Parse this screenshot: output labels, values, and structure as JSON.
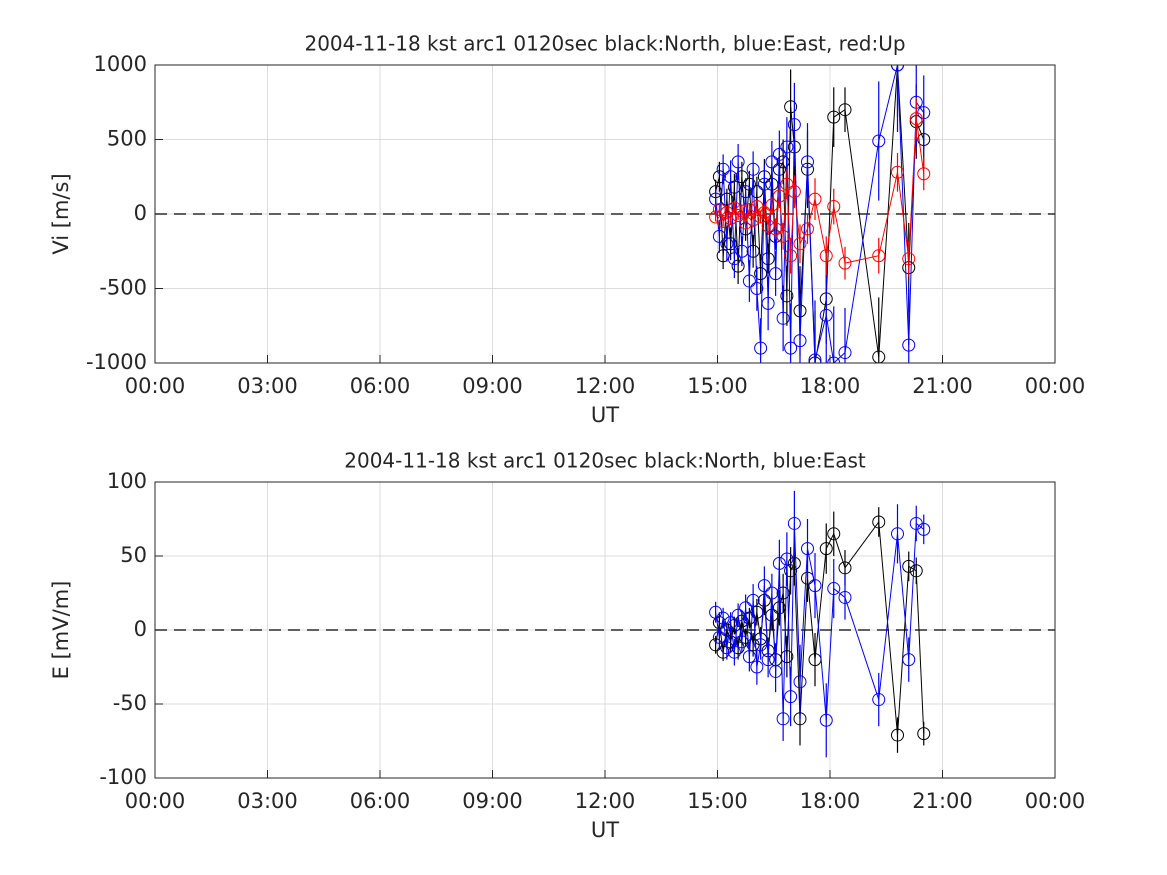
{
  "chart_data": [
    {
      "type": "line",
      "title": "2004-11-18 kst arc1 0120sec black:North, blue:East, red:Up",
      "x_label": "UT",
      "y_label": "Vi [m/s]",
      "xlim": [
        0,
        24
      ],
      "xticks": [
        {
          "value": 0,
          "label": "00:00"
        },
        {
          "value": 3,
          "label": "03:00"
        },
        {
          "value": 6,
          "label": "06:00"
        },
        {
          "value": 9,
          "label": "09:00"
        },
        {
          "value": 12,
          "label": "12:00"
        },
        {
          "value": 15,
          "label": "15:00"
        },
        {
          "value": 18,
          "label": "18:00"
        },
        {
          "value": 21,
          "label": "21:00"
        },
        {
          "value": 24,
          "label": "00:00"
        }
      ],
      "ylim": [
        -1000,
        1000
      ],
      "yticks": [
        -1000,
        -500,
        0,
        500,
        1000
      ],
      "grid": true,
      "x": [
        14.95,
        15.05,
        15.15,
        15.25,
        15.35,
        15.45,
        15.55,
        15.65,
        15.75,
        15.85,
        15.95,
        16.05,
        16.15,
        16.25,
        16.35,
        16.45,
        16.55,
        16.65,
        16.75,
        16.85,
        16.95,
        17.05,
        17.2,
        17.4,
        17.6,
        17.9,
        18.1,
        18.4,
        19.3,
        19.8,
        20.1,
        20.3,
        20.5
      ],
      "series": [
        {
          "name": "North",
          "color": "#000000",
          "values": [
            150,
            250,
            -280,
            100,
            -200,
            180,
            -350,
            250,
            -100,
            200,
            -250,
            150,
            -400,
            250,
            -300,
            200,
            -150,
            300,
            350,
            -550,
            720,
            450,
            -650,
            300,
            -1000,
            -570,
            650,
            700,
            -960,
            1000,
            -360,
            620,
            500
          ],
          "errors": [
            80,
            100,
            90,
            70,
            110,
            90,
            120,
            100,
            80,
            90,
            110,
            100,
            130,
            120,
            100,
            110,
            90,
            140,
            150,
            200,
            250,
            220,
            300,
            260,
            350,
            300,
            200,
            150,
            400,
            350,
            300,
            250,
            200
          ]
        },
        {
          "name": "East",
          "color": "#0000ff",
          "values": [
            100,
            -150,
            300,
            -200,
            250,
            -300,
            350,
            -250,
            150,
            -450,
            300,
            -500,
            -900,
            200,
            -600,
            350,
            -400,
            400,
            -700,
            450,
            -900,
            600,
            -850,
            350,
            -980,
            -680,
            -1000,
            -930,
            490,
            1000,
            -880,
            750,
            680
          ],
          "errors": [
            90,
            110,
            100,
            120,
            110,
            130,
            120,
            100,
            90,
            140,
            120,
            150,
            200,
            130,
            180,
            140,
            150,
            160,
            220,
            200,
            300,
            280,
            320,
            260,
            400,
            350,
            380,
            300,
            400,
            450,
            380,
            300,
            250
          ]
        },
        {
          "name": "Up",
          "color": "#ff0000",
          "values": [
            -20,
            30,
            -50,
            10,
            -30,
            40,
            -10,
            20,
            -60,
            30,
            -40,
            50,
            -20,
            10,
            -80,
            60,
            -100,
            120,
            -150,
            200,
            -280,
            150,
            -200,
            -100,
            100,
            -280,
            50,
            -330,
            -280,
            280,
            -300,
            640,
            270
          ],
          "errors": [
            30,
            40,
            35,
            30,
            40,
            35,
            30,
            40,
            45,
            40,
            50,
            45,
            40,
            40,
            60,
            55,
            70,
            80,
            90,
            100,
            120,
            110,
            130,
            100,
            140,
            130,
            120,
            110,
            120,
            130,
            120,
            140,
            110
          ]
        }
      ]
    },
    {
      "type": "line",
      "title": "2004-11-18 kst arc1 0120sec black:North, blue:East",
      "x_label": "UT",
      "y_label": "E [mV/m]",
      "xlim": [
        0,
        24
      ],
      "xticks": [
        {
          "value": 0,
          "label": "00:00"
        },
        {
          "value": 3,
          "label": "03:00"
        },
        {
          "value": 6,
          "label": "06:00"
        },
        {
          "value": 9,
          "label": "09:00"
        },
        {
          "value": 12,
          "label": "12:00"
        },
        {
          "value": 15,
          "label": "15:00"
        },
        {
          "value": 18,
          "label": "18:00"
        },
        {
          "value": 21,
          "label": "21:00"
        },
        {
          "value": 24,
          "label": "00:00"
        }
      ],
      "ylim": [
        -100,
        100
      ],
      "yticks": [
        -100,
        -50,
        0,
        50,
        100
      ],
      "grid": true,
      "x": [
        14.95,
        15.05,
        15.15,
        15.25,
        15.35,
        15.45,
        15.55,
        15.65,
        15.75,
        15.85,
        15.95,
        16.05,
        16.15,
        16.25,
        16.35,
        16.45,
        16.55,
        16.65,
        16.75,
        16.85,
        16.95,
        17.05,
        17.2,
        17.4,
        17.6,
        17.9,
        18.1,
        18.4,
        19.3,
        19.8,
        20.1,
        20.3,
        20.5
      ],
      "series": [
        {
          "name": "North",
          "color": "#000000",
          "values": [
            -10,
            5,
            -15,
            0,
            -8,
            3,
            -12,
            6,
            -5,
            8,
            -10,
            12,
            -6,
            20,
            -14,
            10,
            -20,
            15,
            25,
            -18,
            40,
            45,
            -60,
            35,
            -20,
            55,
            65,
            42,
            73,
            -71,
            43,
            40,
            -70
          ],
          "errors": [
            6,
            7,
            6,
            5,
            7,
            6,
            8,
            7,
            6,
            7,
            8,
            9,
            8,
            10,
            9,
            10,
            11,
            12,
            13,
            14,
            16,
            15,
            18,
            16,
            18,
            17,
            15,
            12,
            10,
            12,
            10,
            9,
            8
          ]
        },
        {
          "name": "East",
          "color": "#0000ff",
          "values": [
            12,
            -5,
            8,
            -12,
            5,
            -15,
            10,
            -8,
            15,
            -18,
            20,
            -25,
            -10,
            30,
            -20,
            25,
            -28,
            45,
            -60,
            48,
            -45,
            72,
            -35,
            55,
            30,
            -61,
            28,
            22,
            -47,
            65,
            -20,
            72,
            68
          ],
          "errors": [
            7,
            8,
            7,
            8,
            7,
            9,
            8,
            7,
            9,
            10,
            11,
            12,
            10,
            13,
            12,
            13,
            14,
            16,
            15,
            18,
            20,
            22,
            25,
            20,
            22,
            25,
            20,
            15,
            18,
            20,
            15,
            12,
            10
          ]
        }
      ]
    }
  ]
}
